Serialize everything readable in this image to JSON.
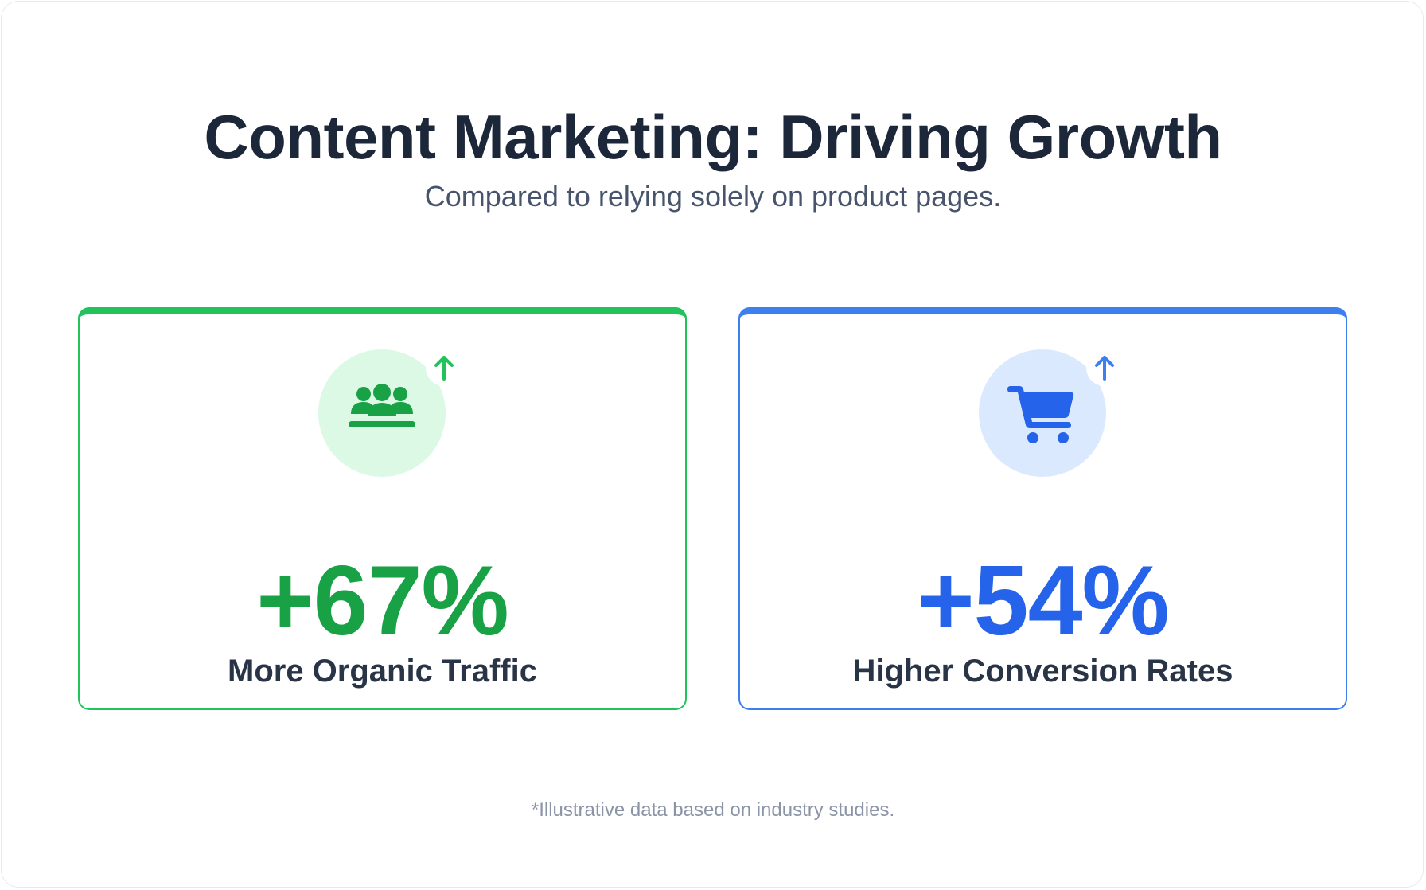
{
  "header": {
    "title": "Content Marketing: Driving Growth",
    "subtitle": "Compared to relying solely on product pages."
  },
  "cards": [
    {
      "value": "+67%",
      "label": "More Organic Traffic",
      "icon": "users-group-icon",
      "badge_icon": "arrow-up-icon",
      "accent_color": "#22c35a",
      "text_color": "#18a245",
      "icon_bg": "#dcf9e5"
    },
    {
      "value": "+54%",
      "label": "Higher Conversion Rates",
      "icon": "shopping-cart-icon",
      "badge_icon": "arrow-up-icon",
      "accent_color": "#3d7fee",
      "text_color": "#2663eb",
      "icon_bg": "#dbe9fe"
    }
  ],
  "footnote": "*Illustrative data based on industry studies."
}
